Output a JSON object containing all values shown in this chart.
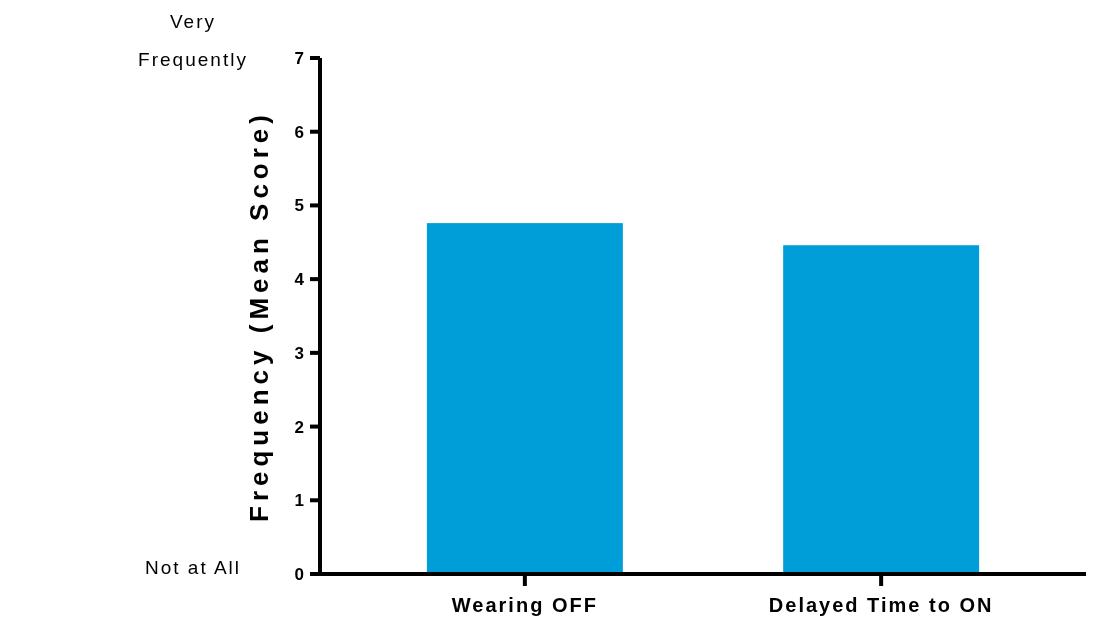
{
  "chart_data": {
    "type": "bar",
    "ylabel": "Frequency  (Mean Score)",
    "categories": [
      "Wearing OFF",
      "Delayed Time to ON"
    ],
    "values": [
      4.76,
      4.46
    ],
    "color": "#009ed9",
    "ylim": [
      0,
      7
    ],
    "yticks": [
      0,
      1,
      2,
      3,
      4,
      5,
      6,
      7
    ],
    "grid": false,
    "annotations": [
      "Very Frequently",
      "Not at All"
    ]
  }
}
